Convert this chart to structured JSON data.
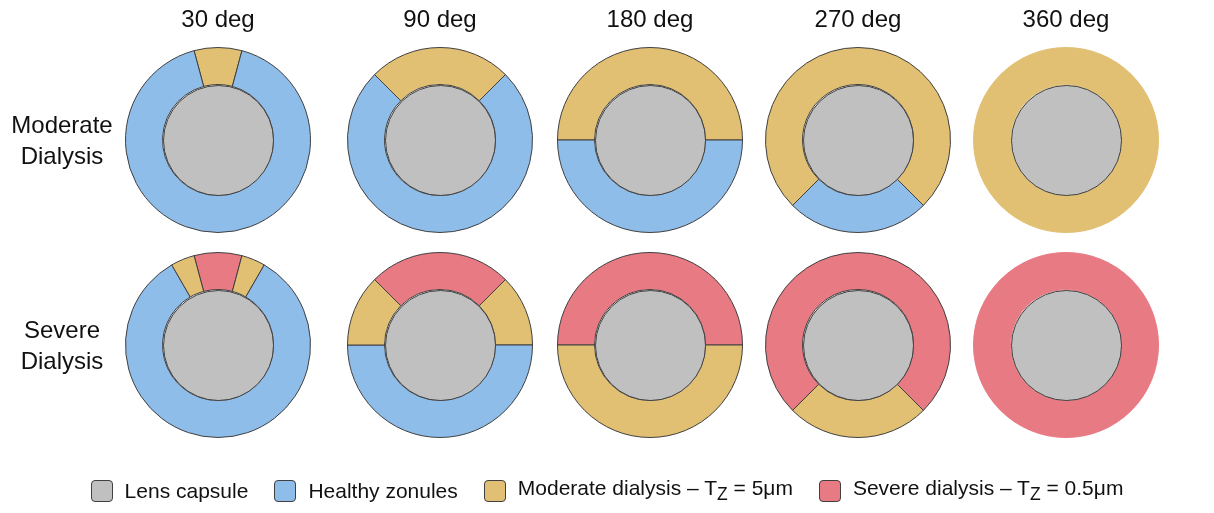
{
  "chart_data": [
    {
      "type": "donut",
      "title": "30 deg",
      "ylabel": "Moderate Dialysis",
      "categories": [
        null,
        null
      ],
      "values": [
        8.33,
        91.67
      ],
      "colors": [
        "#e2c073",
        "#8fbdea"
      ]
    },
    {
      "type": "donut",
      "title": "90 deg",
      "categories": [
        null,
        null
      ],
      "values": [
        25,
        75
      ],
      "colors": [
        "#e2c073",
        "#8fbdea"
      ]
    },
    {
      "type": "donut",
      "title": "180 deg",
      "categories": [
        null,
        null
      ],
      "values": [
        50,
        50
      ],
      "colors": [
        "#e2c073",
        "#8fbdea"
      ]
    },
    {
      "type": "donut",
      "title": "270 deg",
      "categories": [
        null,
        null
      ],
      "values": [
        75,
        25
      ],
      "colors": [
        "#e2c073",
        "#8fbdea"
      ]
    },
    {
      "type": "donut",
      "title": "360 deg",
      "categories": [
        null
      ],
      "values": [
        100
      ],
      "colors": [
        "#e2c073"
      ]
    },
    {
      "type": "donut",
      "ylabel": "Severe Dialysis",
      "categories": [
        null,
        null,
        null,
        null
      ],
      "values": [
        8.33,
        4.17,
        83.33,
        4.17
      ],
      "colors": [
        "#e87a84",
        "#e2c073",
        "#8fbdea",
        "#e2c073"
      ]
    },
    {
      "type": "donut",
      "categories": [
        null,
        null,
        null,
        null
      ],
      "values": [
        25,
        12.5,
        50,
        12.5
      ],
      "colors": [
        "#e87a84",
        "#e2c073",
        "#8fbdea",
        "#e2c073"
      ]
    },
    {
      "type": "donut",
      "categories": [
        null,
        null
      ],
      "values": [
        50,
        50
      ],
      "colors": [
        "#e87a84",
        "#e2c073"
      ]
    },
    {
      "type": "donut",
      "categories": [
        null,
        null
      ],
      "values": [
        75,
        25
      ],
      "colors": [
        "#e87a84",
        "#e2c073"
      ]
    },
    {
      "type": "donut",
      "categories": [
        null
      ],
      "values": [
        100
      ],
      "colors": [
        "#e87a84"
      ]
    },
    {
      "type": "other",
      "categories": [
        "Lens capsule",
        "Healthy zonules",
        "Moderate dialysis – T$_{Z}$ = 5μm",
        "Severe dialysis – T$_{Z}$ = 0.5μm"
      ],
      "colors": [
        "#c0c0c0",
        "#8fbdea",
        "#e2c073",
        "#e87a84"
      ]
    }
  ]
}
